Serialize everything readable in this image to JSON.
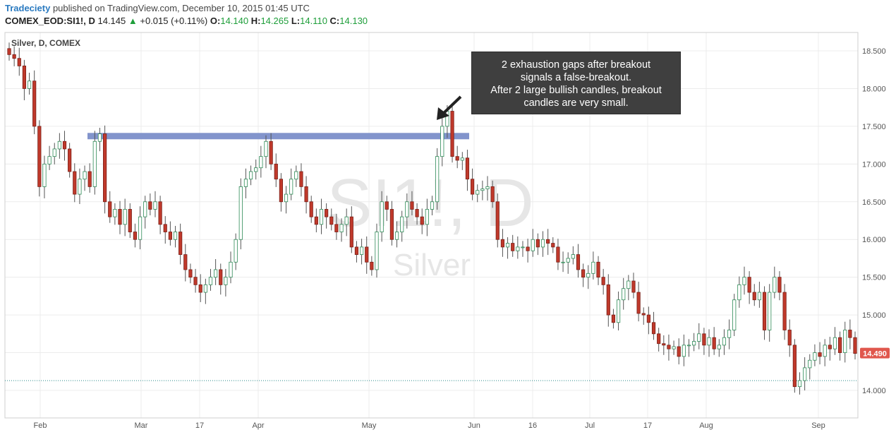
{
  "header": {
    "author": "Tradeciety",
    "published": "published on TradingView.com, December 10, 2015 01:45 UTC",
    "symbol": "COMEX_EOD:SI1!, D",
    "last": "14.145",
    "change": "+0.015 (+0.11%)",
    "o_label": "O:",
    "o_val": "14.140",
    "h_label": "H:",
    "h_val": "14.265",
    "l_label": "L:",
    "l_val": "14.110",
    "c_label": "C:",
    "c_val": "14.130"
  },
  "chart_label": "Silver, D, COMEX",
  "watermark": {
    "symbol": "SI1!, D",
    "name": "Silver"
  },
  "annotation": {
    "lines": [
      "2 exhaustion gaps after breakout",
      "signals a false-breakout.",
      "After 2 large bullish candles, breakout",
      "candles are very small."
    ]
  },
  "price_tag": "14.490",
  "colors": {
    "up": "#2e8b57",
    "down": "#c0392b",
    "resistance": "#7b8ec9",
    "annotation_bg": "#3f3f3f"
  },
  "chart_data": {
    "type": "candlestick",
    "y_ticks": [
      "18.500",
      "18.000",
      "17.500",
      "17.000",
      "16.500",
      "16.000",
      "15.500",
      "15.000",
      "14.500",
      "14.000"
    ],
    "x_ticks": [
      "Feb",
      "Mar",
      "17",
      "Apr",
      "May",
      "Jun",
      "16",
      "Jul",
      "17",
      "Aug",
      "Sep"
    ],
    "ylim": [
      13.6,
      18.7
    ],
    "resistance_level": 17.37,
    "last_price": 14.49,
    "dotted_level": 14.13,
    "closes": [
      18.45,
      18.4,
      18.3,
      18.0,
      18.1,
      17.5,
      16.7,
      17.0,
      17.1,
      17.2,
      17.3,
      17.2,
      16.9,
      16.6,
      16.8,
      16.9,
      16.7,
      17.3,
      17.4,
      16.5,
      16.3,
      16.4,
      16.2,
      16.4,
      16.1,
      16.0,
      16.3,
      16.5,
      16.4,
      16.5,
      16.2,
      16.1,
      16.0,
      16.1,
      15.8,
      15.6,
      15.5,
      15.4,
      15.3,
      15.4,
      15.5,
      15.6,
      15.4,
      15.5,
      15.7,
      16.0,
      16.7,
      16.8,
      16.9,
      16.95,
      17.1,
      17.3,
      17.0,
      16.8,
      16.5,
      16.6,
      16.8,
      16.9,
      16.7,
      16.5,
      16.3,
      16.2,
      16.4,
      16.3,
      16.2,
      16.1,
      16.2,
      16.3,
      15.9,
      15.8,
      15.9,
      15.7,
      15.6,
      16.1,
      16.5,
      16.4,
      16.0,
      16.1,
      16.3,
      16.5,
      16.4,
      16.3,
      16.2,
      16.4,
      16.5,
      17.1,
      17.5,
      17.7,
      17.1,
      17.05,
      17.08,
      16.8,
      16.6,
      16.65,
      16.67,
      16.7,
      16.5,
      16.0,
      15.9,
      15.95,
      15.85,
      15.9,
      15.9,
      15.85,
      16.0,
      15.9,
      16.0,
      15.95,
      15.9,
      15.7,
      15.7,
      15.75,
      15.8,
      15.6,
      15.5,
      15.55,
      15.7,
      15.5,
      15.4,
      15.0,
      14.9,
      15.2,
      15.35,
      15.45,
      15.3,
      15.02,
      15.0,
      14.9,
      14.75,
      14.62,
      14.6,
      14.55,
      14.58,
      14.45,
      14.6,
      14.6,
      14.65,
      14.75,
      14.6,
      14.7,
      14.55,
      14.6,
      14.7,
      14.8,
      15.2,
      15.4,
      15.5,
      15.3,
      15.2,
      15.3,
      14.8,
      15.3,
      15.5,
      15.3,
      14.8,
      14.6,
      14.05,
      14.13,
      14.3,
      14.4,
      14.5,
      14.45,
      14.6,
      14.55,
      14.7,
      14.5,
      14.8,
      14.7,
      14.49
    ]
  }
}
